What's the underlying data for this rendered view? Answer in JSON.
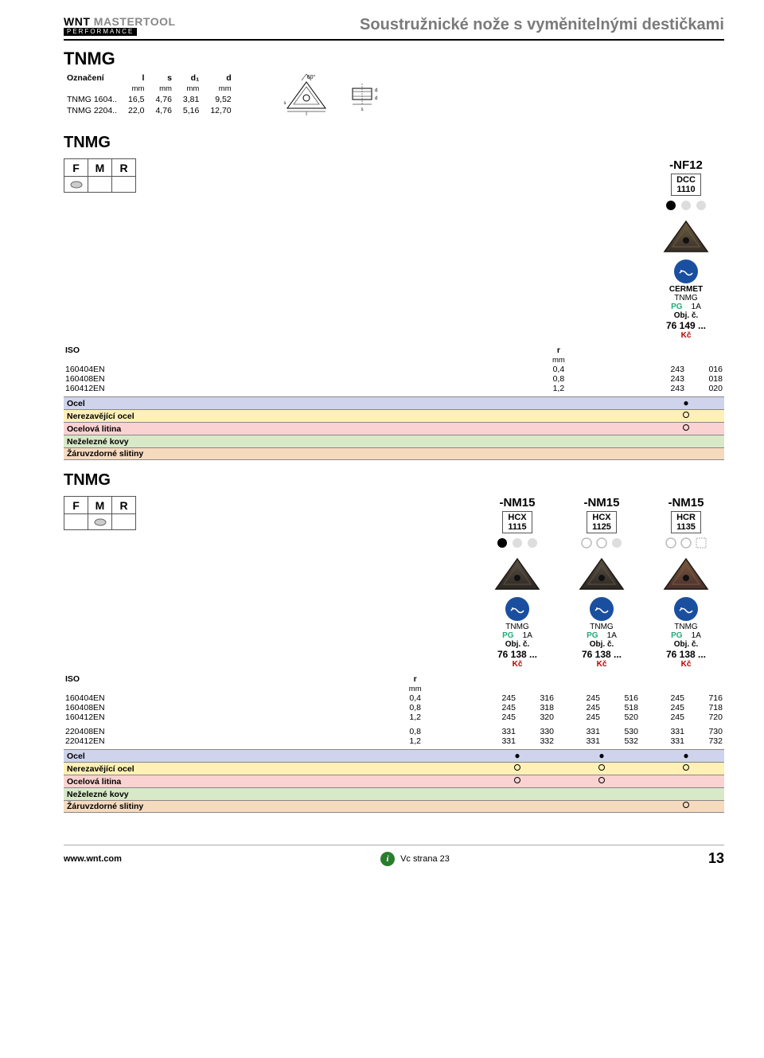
{
  "header": {
    "brand_bold": "WNT",
    "brand_light": "MASTERTOOL",
    "brand_sub": "PERFORMANCE",
    "page_title": "Soustružnické nože s vyměnitelnými destičkami"
  },
  "dim_section": {
    "title": "TNMG",
    "columns": [
      "Označení",
      "l",
      "s",
      "d₁",
      "d"
    ],
    "units": [
      "",
      "mm",
      "mm",
      "mm",
      "mm"
    ],
    "rows": [
      [
        "TNMG 1604..",
        "16,5",
        "4,76",
        "3,81",
        "9,52"
      ],
      [
        "TNMG 2204..",
        "22,0",
        "4,76",
        "5,16",
        "12,70"
      ]
    ],
    "angle_label": "60°"
  },
  "blocks": [
    {
      "title": "TNMG",
      "fmr": [
        "F",
        "M",
        "R"
      ],
      "fmr_icon_index": 0,
      "variants": [
        {
          "name": "-NF12",
          "grade": [
            "DCC",
            "1110"
          ],
          "coat_pattern": [
            "solid",
            "faded",
            "faded"
          ],
          "insert_color": "#3b302a",
          "insert_overlay": "#6a5c40",
          "material_top": "CERMET",
          "material_sub": "TNMG",
          "pg": "PG",
          "pg_val": "1A",
          "obj": "Obj. č.",
          "artno": "76 149 ...",
          "kc": "Kč"
        }
      ],
      "iso_label": "ISO",
      "r_label": "r",
      "r_unit": "mm",
      "iso_rows": [
        {
          "code": "160404EN",
          "r": "0,4"
        },
        {
          "code": "160408EN",
          "r": "0,8"
        },
        {
          "code": "160412EN",
          "r": "1,2"
        }
      ],
      "price_grid": [
        [
          [
            "243",
            "016"
          ],
          [
            "243",
            "018"
          ],
          [
            "243",
            "020"
          ]
        ]
      ],
      "materials": [
        {
          "name": "Ocel",
          "marks": [
            "●"
          ]
        },
        {
          "name": "Nerezavějící ocel",
          "marks": [
            "○"
          ]
        },
        {
          "name": "Ocelová litina",
          "marks": [
            "○"
          ]
        },
        {
          "name": "Neželezné kovy",
          "marks": [
            ""
          ]
        },
        {
          "name": "Žáruvzdorné slitiny",
          "marks": [
            ""
          ]
        }
      ]
    },
    {
      "title": "TNMG",
      "fmr": [
        "F",
        "M",
        "R"
      ],
      "fmr_icon_index": 1,
      "variants": [
        {
          "name": "-NM15",
          "grade": [
            "HCX",
            "1115"
          ],
          "coat_pattern": [
            "solid",
            "faded",
            "faded"
          ],
          "insert_color": "#2d2723",
          "insert_overlay": "#5a5144",
          "material_top": "",
          "material_sub": "TNMG",
          "pg": "PG",
          "pg_val": "1A",
          "obj": "Obj. č.",
          "artno": "76 138 ...",
          "kc": "Kč"
        },
        {
          "name": "-NM15",
          "grade": [
            "HCX",
            "1125"
          ],
          "coat_pattern": [
            "open",
            "open",
            "faded"
          ],
          "insert_color": "#2d2723",
          "insert_overlay": "#5e5548",
          "material_top": "",
          "material_sub": "TNMG",
          "pg": "PG",
          "pg_val": "1A",
          "obj": "Obj. č.",
          "artno": "76 138 ...",
          "kc": "Kč"
        },
        {
          "name": "-NM15",
          "grade": [
            "HCR",
            "1135"
          ],
          "coat_pattern": [
            "open",
            "open",
            "dashed"
          ],
          "insert_color": "#4a2f2f",
          "insert_overlay": "#7a5a3c",
          "material_top": "",
          "material_sub": "TNMG",
          "pg": "PG",
          "pg_val": "1A",
          "obj": "Obj. č.",
          "artno": "76 138 ...",
          "kc": "Kč"
        }
      ],
      "iso_label": "ISO",
      "r_label": "r",
      "r_unit": "mm",
      "iso_rows": [
        {
          "code": "160404EN",
          "r": "0,4"
        },
        {
          "code": "160408EN",
          "r": "0,8"
        },
        {
          "code": "160412EN",
          "r": "1,2"
        },
        {
          "gap": true
        },
        {
          "code": "220408EN",
          "r": "0,8"
        },
        {
          "code": "220412EN",
          "r": "1,2"
        }
      ],
      "price_grid": [
        [
          [
            "245",
            "316"
          ],
          [
            "245",
            "318"
          ],
          [
            "245",
            "320"
          ],
          [],
          [
            "331",
            "330"
          ],
          [
            "331",
            "332"
          ]
        ],
        [
          [
            "245",
            "516"
          ],
          [
            "245",
            "518"
          ],
          [
            "245",
            "520"
          ],
          [],
          [
            "331",
            "530"
          ],
          [
            "331",
            "532"
          ]
        ],
        [
          [
            "245",
            "716"
          ],
          [
            "245",
            "718"
          ],
          [
            "245",
            "720"
          ],
          [],
          [
            "331",
            "730"
          ],
          [
            "331",
            "732"
          ]
        ]
      ],
      "materials": [
        {
          "name": "Ocel",
          "marks": [
            "●",
            "●",
            "●"
          ]
        },
        {
          "name": "Nerezavějící ocel",
          "marks": [
            "○",
            "○",
            "○"
          ]
        },
        {
          "name": "Ocelová litina",
          "marks": [
            "○",
            "○",
            ""
          ]
        },
        {
          "name": "Neželezné kovy",
          "marks": [
            "",
            "",
            ""
          ]
        },
        {
          "name": "Žáruvzdorné slitiny",
          "marks": [
            "",
            "",
            "○"
          ]
        }
      ]
    }
  ],
  "footer": {
    "url": "www.wnt.com",
    "ref": "Vc strana 23",
    "page": "13"
  },
  "colors": {
    "strip": [
      "#cfd3ec",
      "#fff1b5",
      "#fbd2d2",
      "#d8e9c8",
      "#f6dabe"
    ]
  }
}
